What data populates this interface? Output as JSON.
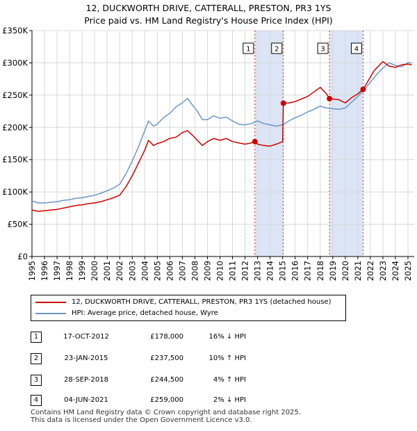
{
  "title": {
    "line1": "12, DUCKWORTH DRIVE, CATTERALL, PRESTON, PR3 1YS",
    "line2": "Price paid vs. HM Land Registry's House Price Index (HPI)"
  },
  "colors": {
    "property": "#cc0000",
    "hpi": "#6b96c8",
    "highlight": "#dbe5f5",
    "marker_line": "#cc0000"
  },
  "chart_data": {
    "type": "line",
    "title": "Price paid vs. HM Land Registry's House Price Index (HPI)",
    "xlabel": "",
    "ylabel": "",
    "xlim": [
      1995,
      2025.5
    ],
    "ylim": [
      0,
      350000
    ],
    "grid": true,
    "x_ticks": [
      "1995",
      "1996",
      "1997",
      "1998",
      "1999",
      "2000",
      "2001",
      "2002",
      "2003",
      "2004",
      "2005",
      "2006",
      "2007",
      "2008",
      "2009",
      "2010",
      "2011",
      "2012",
      "2013",
      "2014",
      "2015",
      "2016",
      "2017",
      "2018",
      "2019",
      "2020",
      "2021",
      "2022",
      "2023",
      "2024",
      "2025"
    ],
    "y_ticks": [
      {
        "value": 0,
        "label": "£0"
      },
      {
        "value": 50000,
        "label": "£50K"
      },
      {
        "value": 100000,
        "label": "£100K"
      },
      {
        "value": 150000,
        "label": "£150K"
      },
      {
        "value": 200000,
        "label": "£200K"
      },
      {
        "value": 250000,
        "label": "£250K"
      },
      {
        "value": 300000,
        "label": "£300K"
      },
      {
        "value": 350000,
        "label": "£350K"
      }
    ],
    "series": [
      {
        "name": "12, DUCKWORTH DRIVE, CATTERALL, PRESTON, PR3 1YS (detached house)",
        "color": "#cc0000",
        "x": [
          1995.0,
          1995.5,
          1996.0,
          1996.5,
          1997.0,
          1997.5,
          1998.0,
          1998.5,
          1999.0,
          1999.5,
          2000.0,
          2000.5,
          2001.0,
          2001.5,
          2002.0,
          2002.5,
          2003.0,
          2003.5,
          2004.0,
          2004.3,
          2004.7,
          2005.0,
          2005.5,
          2006.0,
          2006.5,
          2007.0,
          2007.4,
          2007.8,
          2008.2,
          2008.6,
          2009.0,
          2009.5,
          2010.0,
          2010.5,
          2011.0,
          2011.5,
          2012.0,
          2012.5,
          2012.79,
          2013.0,
          2013.5,
          2014.0,
          2014.5,
          2015.0,
          2015.06,
          2015.5,
          2016.0,
          2016.5,
          2017.0,
          2017.5,
          2018.0,
          2018.5,
          2018.74,
          2019.0,
          2019.5,
          2020.0,
          2020.5,
          2021.0,
          2021.42,
          2021.7,
          2022.0,
          2022.3,
          2022.7,
          2023.0,
          2023.5,
          2024.0,
          2024.5,
          2025.0,
          2025.3
        ],
        "y": [
          72000,
          70000,
          71000,
          72000,
          73000,
          75000,
          77000,
          79000,
          80000,
          82000,
          83000,
          85000,
          88000,
          91000,
          95000,
          108000,
          125000,
          145000,
          165000,
          180000,
          172000,
          175000,
          178000,
          183000,
          185000,
          192000,
          195000,
          188000,
          180000,
          172000,
          178000,
          183000,
          180000,
          183000,
          178000,
          176000,
          174000,
          176000,
          178000,
          174000,
          172000,
          171000,
          174000,
          178000,
          237500,
          238000,
          240000,
          244000,
          248000,
          255000,
          262000,
          252000,
          244500,
          244000,
          243000,
          238000,
          246000,
          252000,
          259000,
          268000,
          278000,
          288000,
          296000,
          302000,
          295000,
          293000,
          297000,
          298000,
          297000
        ]
      },
      {
        "name": "HPI: Average price, detached house, Wyre",
        "color": "#6b96c8",
        "x": [
          1995.0,
          1995.5,
          1996.0,
          1996.5,
          1997.0,
          1997.5,
          1998.0,
          1998.5,
          1999.0,
          1999.5,
          2000.0,
          2000.5,
          2001.0,
          2001.5,
          2002.0,
          2002.5,
          2003.0,
          2003.5,
          2004.0,
          2004.3,
          2004.7,
          2005.0,
          2005.5,
          2006.0,
          2006.5,
          2007.0,
          2007.4,
          2007.8,
          2008.2,
          2008.6,
          2009.0,
          2009.5,
          2010.0,
          2010.5,
          2011.0,
          2011.5,
          2012.0,
          2012.5,
          2013.0,
          2013.5,
          2014.0,
          2014.5,
          2015.0,
          2015.5,
          2016.0,
          2016.5,
          2017.0,
          2017.5,
          2018.0,
          2018.5,
          2019.0,
          2019.5,
          2020.0,
          2020.5,
          2021.0,
          2021.5,
          2022.0,
          2022.5,
          2023.0,
          2023.5,
          2024.0,
          2024.5,
          2025.0,
          2025.3
        ],
        "y": [
          86000,
          83000,
          83000,
          84000,
          85000,
          87000,
          88000,
          90000,
          91000,
          93000,
          95000,
          98000,
          102000,
          106000,
          112000,
          128000,
          148000,
          170000,
          195000,
          210000,
          202000,
          205000,
          215000,
          222000,
          232000,
          238000,
          245000,
          235000,
          225000,
          212000,
          212000,
          218000,
          214000,
          216000,
          210000,
          205000,
          204000,
          206000,
          210000,
          206000,
          204000,
          202000,
          204000,
          210000,
          215000,
          219000,
          224000,
          228000,
          233000,
          230000,
          229000,
          228000,
          230000,
          239000,
          248000,
          258000,
          270000,
          282000,
          292000,
          300000,
          296000,
          294000,
          300000,
          300000
        ]
      }
    ],
    "sales": [
      {
        "n": "1",
        "x": 2012.79,
        "y": 178000
      },
      {
        "n": "2",
        "x": 2015.06,
        "y": 237500
      },
      {
        "n": "3",
        "x": 2018.74,
        "y": 244500
      },
      {
        "n": "4",
        "x": 2021.42,
        "y": 259000
      }
    ],
    "highlight_ranges": [
      [
        2012.79,
        2015.06
      ],
      [
        2018.74,
        2021.42
      ]
    ]
  },
  "legend": {
    "property_label": "12, DUCKWORTH DRIVE, CATTERALL, PRESTON, PR3 1YS (detached house)",
    "hpi_label": "HPI: Average price, detached house, Wyre"
  },
  "transactions": [
    {
      "n": "1",
      "date": "17-OCT-2012",
      "price": "£178,000",
      "hpi": "16% ↓ HPI"
    },
    {
      "n": "2",
      "date": "23-JAN-2015",
      "price": "£237,500",
      "hpi": "10% ↑ HPI"
    },
    {
      "n": "3",
      "date": "28-SEP-2018",
      "price": "£244,500",
      "hpi": "4% ↑ HPI"
    },
    {
      "n": "4",
      "date": "04-JUN-2021",
      "price": "£259,000",
      "hpi": "2% ↓ HPI"
    }
  ],
  "footer": {
    "line1": "Contains HM Land Registry data © Crown copyright and database right 2025.",
    "line2": "This data is licensed under the Open Government Licence v3.0."
  }
}
